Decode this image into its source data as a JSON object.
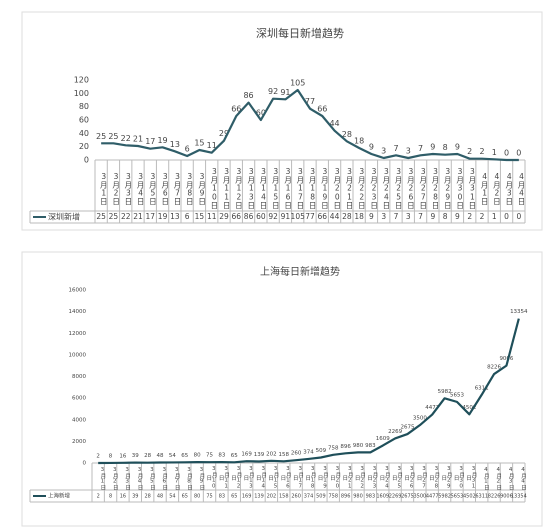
{
  "chart_data": [
    {
      "type": "line",
      "title": "深圳每日新增趋势",
      "categories": [
        "3月1日",
        "3月2日",
        "3月3日",
        "3月4日",
        "3月5日",
        "3月6日",
        "3月7日",
        "3月8日",
        "3月9日",
        "3月10日",
        "3月11日",
        "3月12日",
        "3月13日",
        "3月14日",
        "3月15日",
        "3月16日",
        "3月17日",
        "3月18日",
        "3月19日",
        "3月20日",
        "3月21日",
        "3月22日",
        "3月23日",
        "3月24日",
        "3月25日",
        "3月26日",
        "3月27日",
        "3月28日",
        "3月29日",
        "3月30日",
        "3月31日",
        "4月1日",
        "4月2日",
        "4月3日",
        "4月4日"
      ],
      "series": [
        {
          "name": "深圳新增",
          "color": "#2f5d68",
          "values": [
            25,
            25,
            22,
            21,
            17,
            19,
            13,
            6,
            15,
            11,
            29,
            66,
            86,
            60,
            92,
            91,
            105,
            77,
            66,
            44,
            28,
            18,
            9,
            3,
            7,
            3,
            7,
            9,
            8,
            9,
            2,
            2,
            1,
            0,
            0
          ]
        }
      ],
      "ylim": [
        0,
        120
      ],
      "yticks": [
        0,
        20,
        40,
        60,
        80,
        100,
        120
      ],
      "grid": false
    },
    {
      "type": "line",
      "title": "上海每日新增趋势",
      "categories": [
        "3月1日",
        "3月2日",
        "3月3日",
        "3月4日",
        "3月5日",
        "3月6日",
        "3月7日",
        "3月8日",
        "3月9日",
        "3月10日",
        "3月11日",
        "3月12日",
        "3月13日",
        "3月14日",
        "3月15日",
        "3月16日",
        "3月17日",
        "3月18日",
        "3月19日",
        "3月20日",
        "3月21日",
        "3月22日",
        "3月23日",
        "3月24日",
        "3月25日",
        "3月26日",
        "3月27日",
        "3月28日",
        "3月29日",
        "3月30日",
        "3月31日",
        "4月1日",
        "4月2日",
        "4月3日",
        "4月4日"
      ],
      "series": [
        {
          "name": "上海新增",
          "color": "#1f4f5a",
          "values": [
            2,
            8,
            16,
            39,
            28,
            48,
            54,
            65,
            80,
            75,
            83,
            65,
            169,
            139,
            202,
            158,
            260,
            374,
            509,
            758,
            896,
            980,
            983,
            1609,
            2269,
            2675,
            3500,
            4477,
            5982,
            5653,
            4502,
            6311,
            8226,
            9006,
            13354
          ]
        }
      ],
      "ylim": [
        0,
        16000
      ],
      "yticks": [
        0,
        2000,
        4000,
        6000,
        8000,
        10000,
        12000,
        14000,
        16000
      ],
      "grid": false
    }
  ]
}
